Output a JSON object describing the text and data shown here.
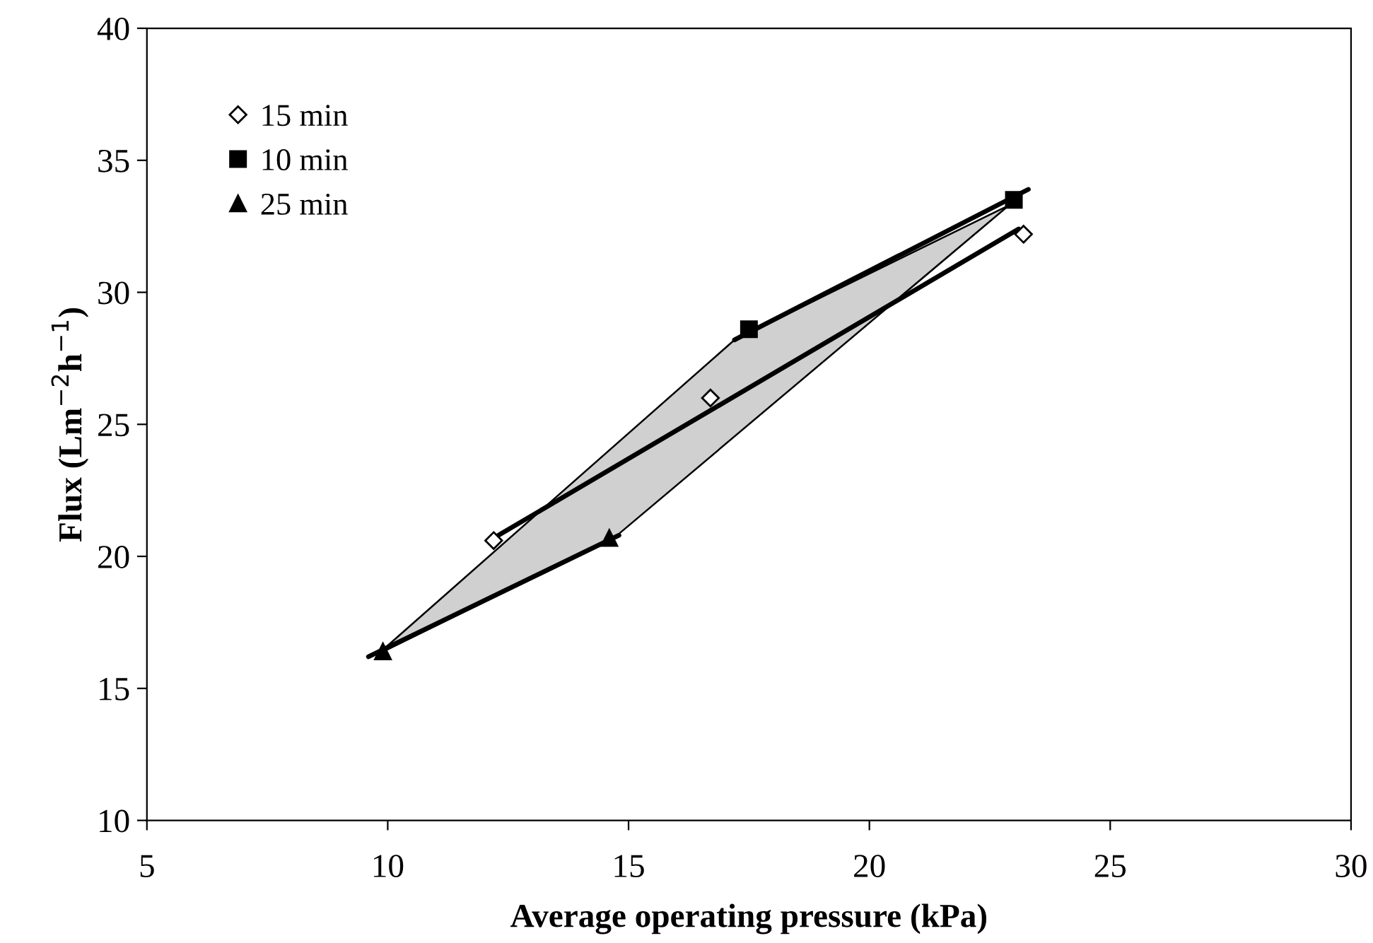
{
  "chart_data": {
    "type": "scatter",
    "xlabel": "Average operating pressure (kPa)",
    "ylabel": "Flux (Lm$^{−2}$h$^{−1}$)",
    "xlim": [
      5,
      30
    ],
    "xticks": [
      5,
      10,
      15,
      20,
      25,
      30
    ],
    "ylim": [
      10,
      40
    ],
    "yticks": [
      10,
      15,
      20,
      25,
      30,
      35,
      40
    ],
    "grid": false,
    "legend": "top left",
    "series": [
      {
        "type": "area",
        "color": "#d0d0d0",
        "x": [
          9.8,
          17.2,
          22.9,
          14.7,
          9.8
        ],
        "values": [
          16.3,
          28.2,
          33.3,
          20.7,
          16.3
        ]
      },
      {
        "type": "line",
        "color": "#000000",
        "x": [
          12.3,
          23.1
        ],
        "values": [
          20.8,
          32.4
        ]
      },
      {
        "type": "line",
        "color": "#000000",
        "x": [
          17.2,
          23.3
        ],
        "values": [
          28.2,
          33.9
        ]
      },
      {
        "type": "line",
        "color": "#000000",
        "x": [
          9.6,
          14.8
        ],
        "values": [
          16.2,
          20.8
        ]
      },
      {
        "name": "15 min",
        "marker": "diamond",
        "color": "#ffffff",
        "x": [
          12.2,
          16.7,
          23.2
        ],
        "values": [
          20.6,
          26.0,
          32.2
        ]
      },
      {
        "name": "10 min",
        "marker": "square",
        "color": "#000000",
        "x": [
          17.5,
          23.0
        ],
        "values": [
          28.6,
          33.5
        ]
      },
      {
        "name": "25 min",
        "marker": "triangle",
        "color": "#000000",
        "x": [
          9.9,
          14.6
        ],
        "values": [
          16.4,
          20.7
        ]
      }
    ]
  }
}
